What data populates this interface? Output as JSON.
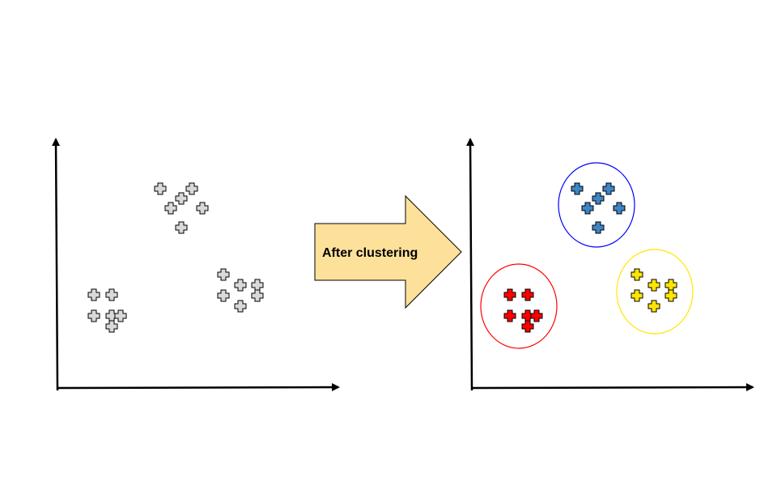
{
  "diagram": {
    "arrow_label": "After clustering",
    "colors": {
      "unclustered_fill": "#d9d9d9",
      "arrow_fill": "#fde19a",
      "cluster_red": "#ff0000",
      "cluster_blue": "#3d85c6",
      "cluster_yellow": "#ffe600",
      "cluster_red_outline": "#ff0000",
      "cluster_blue_outline": "#0000ff",
      "cluster_yellow_outline": "#ffe600",
      "point_outline": "#000000"
    },
    "clusters": [
      {
        "name": "red",
        "points": [
          [
            -1,
            1
          ],
          [
            1,
            1
          ],
          [
            -1,
            -1
          ],
          [
            1,
            -1
          ],
          [
            2,
            -1
          ],
          [
            1,
            -2
          ]
        ]
      },
      {
        "name": "blue",
        "points": [
          [
            -2,
            2
          ],
          [
            1,
            2
          ],
          [
            0,
            1
          ],
          [
            -1,
            0
          ],
          [
            2,
            0
          ],
          [
            0,
            -2
          ]
        ]
      },
      {
        "name": "yellow",
        "points": [
          [
            -1,
            2
          ],
          [
            0,
            1
          ],
          [
            1,
            1
          ],
          [
            -1,
            0
          ],
          [
            1,
            0
          ],
          [
            0,
            -1
          ]
        ]
      }
    ]
  }
}
